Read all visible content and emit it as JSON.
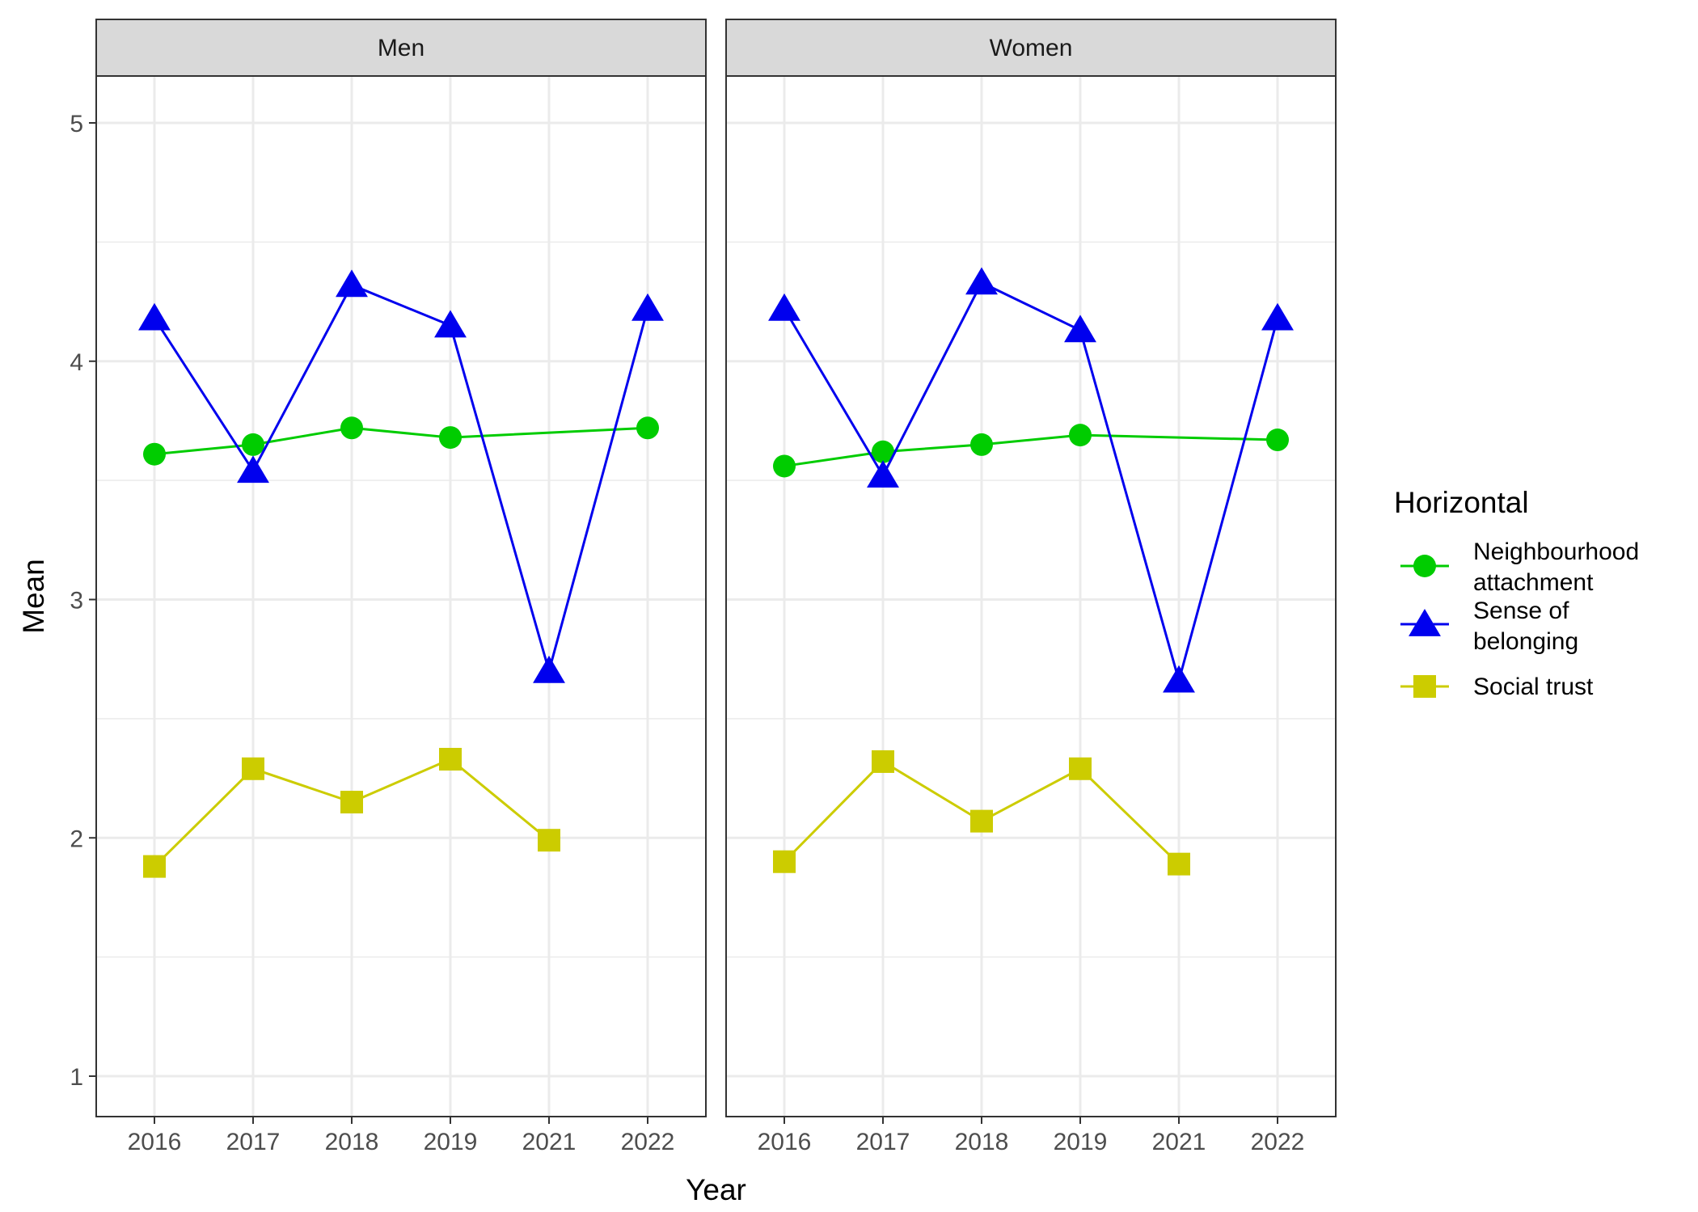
{
  "chart_data": {
    "type": "line",
    "xlabel": "Year",
    "ylabel": "Mean",
    "ylim": [
      0.8,
      5.2
    ],
    "y_ticks": [
      "1",
      "2",
      "3",
      "4",
      "5"
    ],
    "x_categories": [
      "2016",
      "2017",
      "2018",
      "2019",
      "2021",
      "2022"
    ],
    "grid": true,
    "legend": {
      "title": "Horizontal",
      "placement": "right",
      "entries": [
        {
          "lines": [
            "Neighbourhood",
            "attachment"
          ],
          "color": "#00cc00",
          "shape": "circle"
        },
        {
          "lines": [
            "Sense of",
            "belonging"
          ],
          "color": "#0000ee",
          "shape": "triangle"
        },
        {
          "lines": [
            "Social trust"
          ],
          "color": "#cccc00",
          "shape": "square"
        }
      ]
    },
    "panels": [
      {
        "strip_label": "Men",
        "series": [
          {
            "name": "Neighbourhood attachment",
            "color": "#00cc00",
            "shape": "circle",
            "values": [
              3.61,
              3.65,
              3.72,
              3.68,
              null,
              3.72
            ]
          },
          {
            "name": "Sense of belonging",
            "color": "#0000ee",
            "shape": "triangle",
            "values": [
              4.18,
              3.54,
              4.32,
              4.15,
              2.7,
              4.22
            ]
          },
          {
            "name": "Social trust",
            "color": "#cccc00",
            "shape": "square",
            "values": [
              1.88,
              2.29,
              2.15,
              2.33,
              1.99,
              null
            ]
          }
        ]
      },
      {
        "strip_label": "Women",
        "series": [
          {
            "name": "Neighbourhood attachment",
            "color": "#00cc00",
            "shape": "circle",
            "values": [
              3.56,
              3.62,
              3.65,
              3.69,
              null,
              3.67
            ]
          },
          {
            "name": "Sense of belonging",
            "color": "#0000ee",
            "shape": "triangle",
            "values": [
              4.22,
              3.52,
              4.33,
              4.13,
              2.66,
              4.18
            ]
          },
          {
            "name": "Social trust",
            "color": "#cccc00",
            "shape": "square",
            "values": [
              1.9,
              2.32,
              2.07,
              2.29,
              1.89,
              null
            ]
          }
        ]
      }
    ]
  }
}
